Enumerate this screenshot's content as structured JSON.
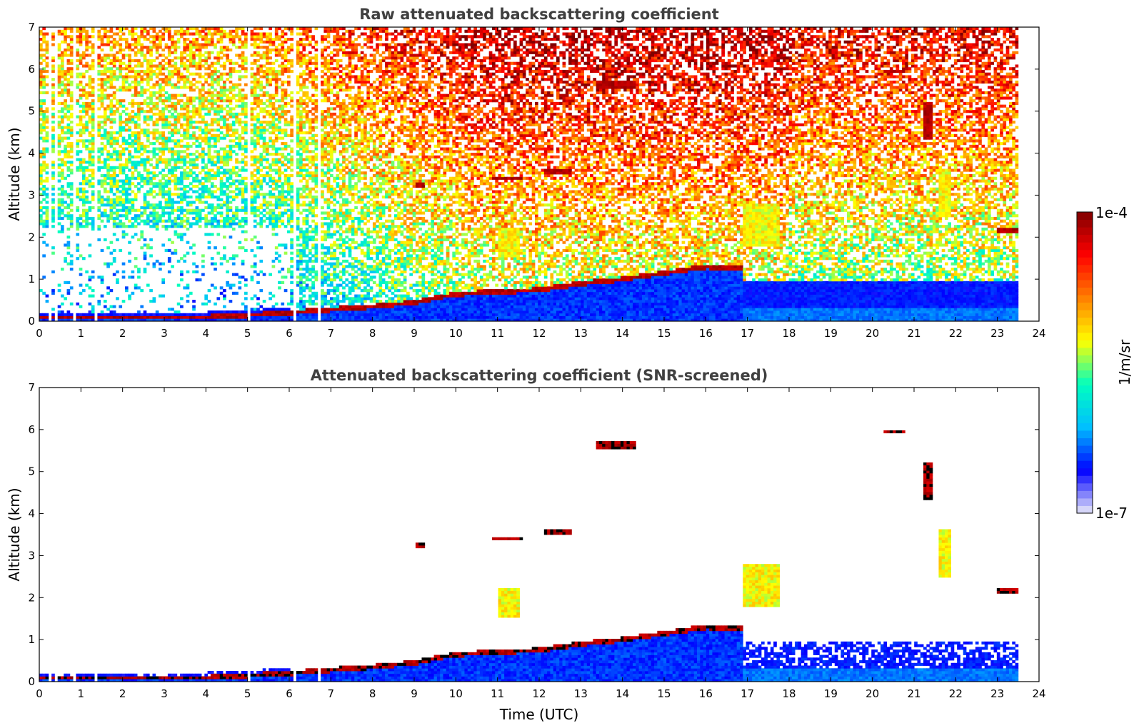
{
  "chart_data": [
    {
      "type": "heatmap",
      "title": "Raw attenuated backscattering coefficient",
      "xlabel": "",
      "ylabel": "Altitude (km)",
      "xlim": [
        0,
        24
      ],
      "ylim": [
        0,
        7
      ],
      "xticks": [
        0,
        1,
        2,
        3,
        4,
        5,
        6,
        7,
        8,
        9,
        10,
        11,
        12,
        13,
        14,
        15,
        16,
        17,
        18,
        19,
        20,
        21,
        22,
        23,
        24
      ],
      "yticks": [
        0,
        1,
        2,
        3,
        4,
        5,
        6,
        7
      ],
      "data_coverage_hours": [
        0,
        23.5
      ],
      "features": [
        {
          "name": "boundary layer top",
          "points": [
            [
              0,
              0.1
            ],
            [
              4,
              0.1
            ],
            [
              5,
              0.15
            ],
            [
              6,
              0.2
            ],
            [
              7,
              0.28
            ],
            [
              8,
              0.35
            ],
            [
              9,
              0.45
            ],
            [
              9.5,
              0.55
            ],
            [
              10,
              0.65
            ],
            [
              11,
              0.7
            ],
            [
              12,
              0.75
            ],
            [
              13,
              0.9
            ],
            [
              14,
              1.0
            ],
            [
              15,
              1.15
            ],
            [
              16,
              1.3
            ],
            [
              16.9,
              1.25
            ]
          ]
        },
        {
          "name": "cloud",
          "t": [
            9.05,
            9.25
          ],
          "alt": [
            3.15,
            3.3
          ]
        },
        {
          "name": "cloud",
          "t": [
            10.9,
            11.6
          ],
          "alt": [
            3.35,
            3.45
          ]
        },
        {
          "name": "cloud",
          "t": [
            12.1,
            12.8
          ],
          "alt": [
            3.5,
            3.65
          ]
        },
        {
          "name": "cloud",
          "t": [
            13.4,
            14.3
          ],
          "alt": [
            5.55,
            5.7
          ]
        },
        {
          "name": "cloud",
          "t": [
            20.3,
            20.8
          ],
          "alt": [
            5.9,
            6.0
          ]
        },
        {
          "name": "cloud",
          "t": [
            21.2,
            21.45
          ],
          "alt": [
            4.3,
            5.2
          ]
        },
        {
          "name": "cloud",
          "t": [
            23.0,
            23.5
          ],
          "alt": [
            2.1,
            2.2
          ]
        },
        {
          "name": "aerosol",
          "t": [
            16.9,
            17.8
          ],
          "alt": [
            1.8,
            2.8
          ]
        },
        {
          "name": "aerosol",
          "t": [
            11.0,
            11.5
          ],
          "alt": [
            1.5,
            2.2
          ]
        },
        {
          "name": "aerosol",
          "t": [
            21.6,
            21.9
          ],
          "alt": [
            2.5,
            3.6
          ]
        }
      ]
    },
    {
      "type": "heatmap",
      "title": "Attenuated backscattering coefficient (SNR-screened)",
      "xlabel": "Time (UTC)",
      "ylabel": "Altitude (km)",
      "xlim": [
        0,
        24
      ],
      "ylim": [
        0,
        7
      ],
      "xticks": [
        0,
        1,
        2,
        3,
        4,
        5,
        6,
        7,
        8,
        9,
        10,
        11,
        12,
        13,
        14,
        15,
        16,
        17,
        18,
        19,
        20,
        21,
        22,
        23,
        24
      ],
      "yticks": [
        0,
        1,
        2,
        3,
        4,
        5,
        6,
        7
      ],
      "data_coverage_hours": [
        0,
        23.5
      ]
    }
  ],
  "colorbar": {
    "label": "1/m/sr",
    "max_label": "1e-4",
    "min_label": "1e-7",
    "scale": "log",
    "range": [
      1e-07,
      0.0001
    ],
    "colormap": [
      "#ebebf8",
      "#0000ff",
      "#00bfff",
      "#00ffbf",
      "#ffff00",
      "#ff8000",
      "#ff0000",
      "#800000"
    ]
  }
}
